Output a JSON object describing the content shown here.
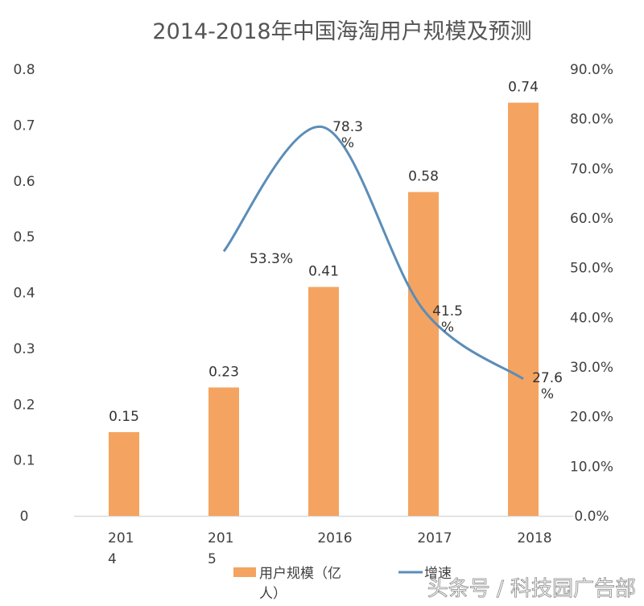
{
  "chart_data": {
    "type": "bar+line",
    "title": "2014-2018年中国海淘用户规模及预测",
    "categories": [
      "2014",
      "2015",
      "2016",
      "2017",
      "2018"
    ],
    "category_labels": [
      [
        "201",
        "4"
      ],
      [
        "201",
        "5"
      ],
      [
        "2016"
      ],
      [
        "2017"
      ],
      [
        "2018"
      ]
    ],
    "series": [
      {
        "name": "用户规模（亿人）",
        "legend_lines": [
          "用户规模（亿",
          "人）"
        ],
        "type": "bar",
        "axis": "left",
        "color": "#F4A460",
        "values": [
          0.15,
          0.23,
          0.41,
          0.58,
          0.74
        ],
        "labels": [
          "0.15",
          "0.23",
          "0.41",
          "0.58",
          "0.74"
        ]
      },
      {
        "name": "增速",
        "type": "line",
        "axis": "right",
        "color": "#5B8DB8",
        "values": [
          null,
          53.3,
          78.3,
          41.5,
          27.6
        ],
        "labels": [
          null,
          [
            "53.3%"
          ],
          [
            "78.3",
            "%"
          ],
          [
            "41.5",
            "%"
          ],
          [
            "27.6",
            "%"
          ]
        ]
      }
    ],
    "y_left": {
      "ylim": [
        0,
        0.8
      ],
      "ticks": [
        "0",
        "0.1",
        "0.2",
        "0.3",
        "0.4",
        "0.5",
        "0.6",
        "0.7",
        "0.8"
      ]
    },
    "y_right": {
      "ylim": [
        0,
        90
      ],
      "ticks": [
        "0.0%",
        "10.0%",
        "20.0%",
        "30.0%",
        "40.0%",
        "50.0%",
        "60.0%",
        "70.0%",
        "80.0%",
        "90.0%"
      ]
    },
    "grid": false,
    "legend": "bottom"
  },
  "watermark": "头条号 / 科技园广告部"
}
